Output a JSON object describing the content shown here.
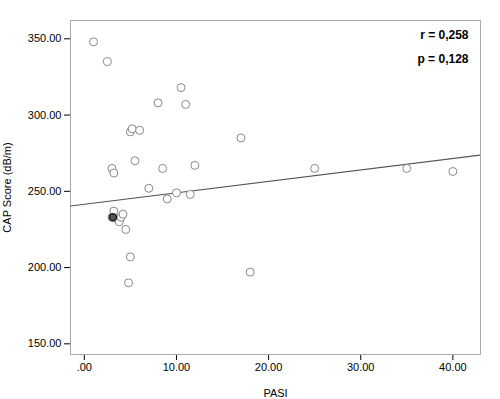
{
  "chart_data": {
    "type": "scatter",
    "xlabel": "PASI",
    "ylabel": "CAP Score (dB/m)",
    "xlim": [
      -1.5,
      43
    ],
    "ylim": [
      143,
      362
    ],
    "xticks": [
      {
        "value": 0,
        "label": ".00"
      },
      {
        "value": 10,
        "label": "10.00"
      },
      {
        "value": 20,
        "label": "20.00"
      },
      {
        "value": 30,
        "label": "30.00"
      },
      {
        "value": 40,
        "label": "40.00"
      }
    ],
    "yticks": [
      {
        "value": 150,
        "label": "150.00"
      },
      {
        "value": 200,
        "label": "200.00"
      },
      {
        "value": 250,
        "label": "250.00"
      },
      {
        "value": 300,
        "label": "300.00"
      },
      {
        "value": 350,
        "label": "350.00"
      }
    ],
    "grid": false,
    "annotations": [
      "r = 0,258",
      "p = 0,128"
    ],
    "series": [
      {
        "type": "scatter",
        "marker": "circle",
        "color": "#888888",
        "x": [
          1.0,
          2.5,
          3.0,
          3.2,
          3.5,
          3.8,
          4.0,
          4.2,
          4.5,
          4.8,
          5.0,
          5.2,
          5.5,
          6.0,
          7.0,
          8.0,
          8.5,
          9.0,
          10.0,
          10.5,
          11.0,
          11.5,
          12.0,
          17.0,
          18.0,
          25.0,
          35.0,
          40.0
        ],
        "values": [
          348,
          335,
          265,
          262,
          232,
          230,
          233,
          235,
          225,
          190,
          289,
          291,
          270,
          290,
          252,
          308,
          265,
          245,
          249,
          318,
          307,
          248,
          267,
          285,
          197,
          265,
          265,
          263
        ]
      },
      {
        "type": "scatter",
        "marker": "circle",
        "color": "#888888",
        "x": [
          3.0,
          3.2,
          5.0
        ],
        "values": [
          233,
          237,
          207
        ]
      },
      {
        "type": "scatter",
        "marker": "filled",
        "color": "#555555",
        "x": [
          3.1
        ],
        "values": [
          233
        ]
      },
      {
        "type": "line",
        "line_style": "solid",
        "color": "#555555",
        "x": [
          -1.5,
          43
        ],
        "values": [
          240.375,
          273.75
        ]
      }
    ]
  }
}
